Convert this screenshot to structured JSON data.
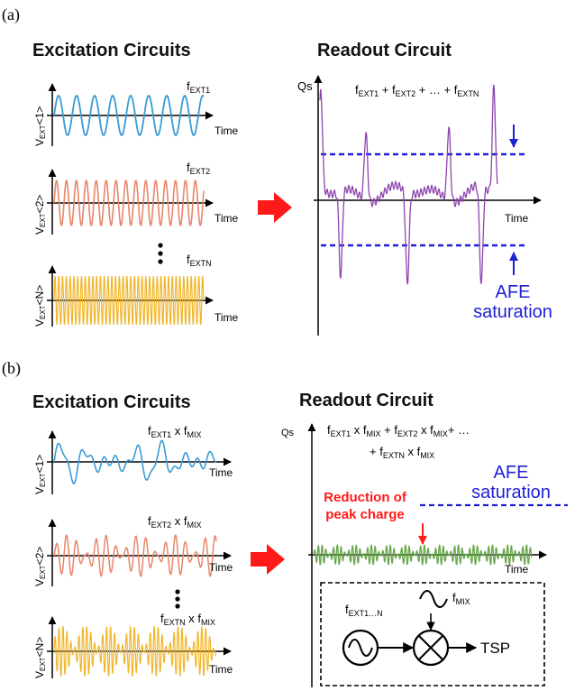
{
  "panel_a": {
    "label": "(a)",
    "excitation_title": "Excitation Circuits",
    "readout_title": "Readout Circuit",
    "waves": [
      {
        "y_label": "V",
        "y_sub": "EXT",
        "y_tail": "<1>",
        "freq": "f",
        "freq_sub": "EXT1",
        "x_label": "Time"
      },
      {
        "y_label": "V",
        "y_sub": "EXT",
        "y_tail": "<2>",
        "freq": "f",
        "freq_sub": "EXT2",
        "x_label": "Time"
      },
      {
        "y_label": "V",
        "y_sub": "EXT",
        "y_tail": "<N>",
        "freq": "f",
        "freq_sub": "EXTN",
        "x_label": "Time"
      }
    ],
    "readout": {
      "y_label": "Qs",
      "x_label": "Time",
      "sum_p1": "f",
      "sum_s1": "EXT1",
      "sum_p2": " + f",
      "sum_s2": "EXT2",
      "sum_p3": " + … + f",
      "sum_s3": "EXTN",
      "afe_line1": "AFE",
      "afe_line2": "saturation"
    }
  },
  "panel_b": {
    "label": "(b)",
    "excitation_title": "Excitation Circuits",
    "readout_title": "Readout Circuit",
    "waves": [
      {
        "y_label": "V",
        "y_sub": "EXT",
        "y_tail": "<1>",
        "freq": "f",
        "freq_sub": "EXT1",
        "mix": " x f",
        "mix_sub": "MIX",
        "x_label": "Time"
      },
      {
        "y_label": "V",
        "y_sub": "EXT",
        "y_tail": "<2>",
        "freq": "f",
        "freq_sub": "EXT2",
        "mix": " x f",
        "mix_sub": "MIX",
        "x_label": "Time"
      },
      {
        "y_label": "V",
        "y_sub": "EXT",
        "y_tail": "<N>",
        "freq": "f",
        "freq_sub": "EXTN",
        "mix": " x f",
        "mix_sub": "MIX",
        "x_label": "Time"
      }
    ],
    "readout": {
      "y_label": "Qs",
      "x_label": "Time",
      "line1_p1": "f",
      "line1_s1": "EXT1",
      "line1_p2": " x f",
      "line1_s2": "MIX",
      "line1_p3": " + f",
      "line1_s3": "EXT2",
      "line1_p4": " x f",
      "line1_s4": "MIX",
      "line1_p5": "+ …",
      "line2_p1": "+ f",
      "line2_s1": "EXTN",
      "line2_p2": " x f",
      "line2_s2": "MIX",
      "afe_line1": "AFE",
      "afe_line2": "saturation",
      "reduction_line1": "Reduction of",
      "reduction_line2": "peak charge",
      "block": {
        "ext_label": "f",
        "ext_sub": "EXT1…N",
        "mix_label": "f",
        "mix_sub": "MIX",
        "output": "TSP"
      }
    }
  },
  "colors": {
    "blue_wave": "#3a9bd5",
    "orange_wave": "#e8866a",
    "yellow_wave": "#f0b528",
    "purple_wave": "#8e44ad",
    "green_wave": "#6aa84f",
    "afe_blue": "#1f1fd6",
    "red_arrow": "#ff1a1a"
  }
}
